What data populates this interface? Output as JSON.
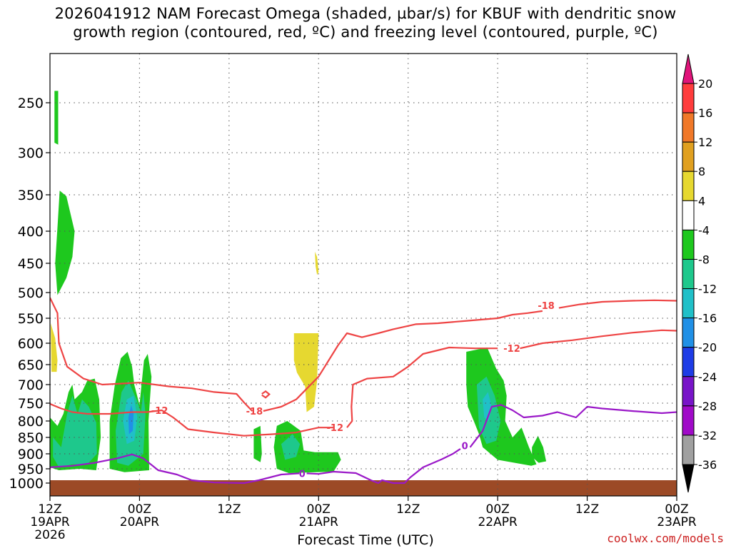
{
  "chart_data": {
    "type": "heatmap",
    "title_line1": "2026041912 NAM Forecast Omega (shaded, µbar/s) for KBUF with dendritic snow",
    "title_line2": "growth region (contoured, red, ºC) and freezing level (contoured, purple, ºC)",
    "xlabel": "Forecast Time (UTC)",
    "credit": "coolwx.com/models",
    "x_range_hours": [
      0,
      84
    ],
    "y_range_hpa": [
      1000,
      200
    ],
    "grid": true,
    "y_ticks": [
      "250",
      "300",
      "350",
      "400",
      "450",
      "500",
      "550",
      "600",
      "650",
      "700",
      "750",
      "800",
      "850",
      "900",
      "950",
      "1000"
    ],
    "x_ticks": [
      {
        "hour": 0,
        "l1": "12Z",
        "l2": "19APR",
        "l3": "2026"
      },
      {
        "hour": 12,
        "l1": "00Z",
        "l2": "20APR",
        "l3": ""
      },
      {
        "hour": 24,
        "l1": "12Z",
        "l2": "",
        "l3": ""
      },
      {
        "hour": 36,
        "l1": "00Z",
        "l2": "21APR",
        "l3": ""
      },
      {
        "hour": 48,
        "l1": "12Z",
        "l2": "",
        "l3": ""
      },
      {
        "hour": 60,
        "l1": "00Z",
        "l2": "22APR",
        "l3": ""
      },
      {
        "hour": 72,
        "l1": "12Z",
        "l2": "",
        "l3": ""
      },
      {
        "hour": 84,
        "l1": "00Z",
        "l2": "23APR",
        "l3": ""
      }
    ],
    "colorbar": {
      "labels": [
        "20",
        "16",
        "12",
        "8",
        "4",
        "-4",
        "-8",
        "-12",
        "-16",
        "-20",
        "-24",
        "-28",
        "-32",
        "-36"
      ],
      "colors": [
        "#ff3c3c",
        "#f07828",
        "#e0a020",
        "#e6d830",
        "#ffffff",
        "#1ec81e",
        "#1ec88c",
        "#20c0c8",
        "#2090e6",
        "#1e3ce6",
        "#7814c8",
        "#a00ac8",
        "#a0a0a0"
      ],
      "top_arrow": "#e0147a",
      "bottom_arrow": "#000000"
    },
    "contours": [
      {
        "kind": "dgz",
        "label": "-12",
        "color": "#ee4444"
      },
      {
        "kind": "dgz",
        "label": "-18",
        "color": "#ee4444"
      },
      {
        "kind": "freezing",
        "label": "0",
        "color": "#9a18c8"
      }
    ],
    "contour_labels": [
      {
        "text": "-18",
        "hour": 66.5,
        "hpa": 525
      },
      {
        "text": "-12",
        "hour": 61.9,
        "hpa": 612
      },
      {
        "text": "-12",
        "hour": 14.7,
        "hpa": 770
      },
      {
        "text": "-18",
        "hour": 27.4,
        "hpa": 772
      },
      {
        "text": "-12",
        "hour": 38.2,
        "hpa": 820
      },
      {
        "text": "0",
        "hour": 55.6,
        "hpa": 875
      },
      {
        "text": "0",
        "hour": 33.8,
        "hpa": 966
      }
    ],
    "surface_fill": "#9c4a26"
  }
}
